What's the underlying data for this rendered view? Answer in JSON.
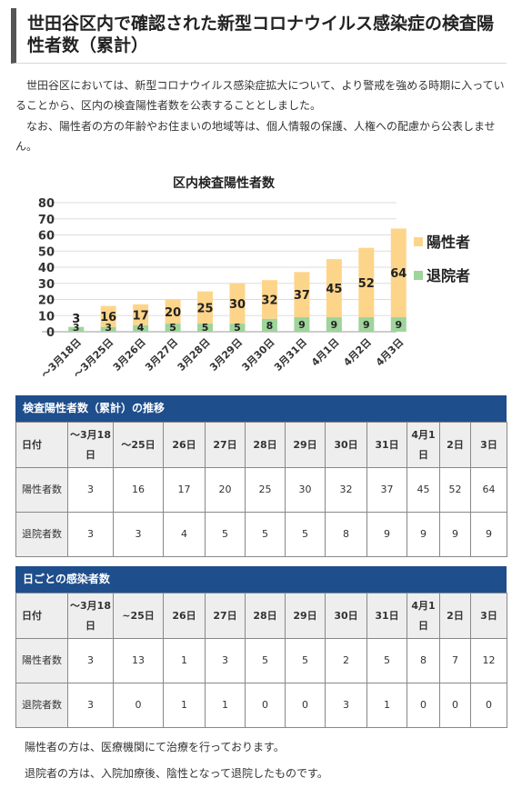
{
  "page": {
    "title": "世田谷区内で確認された新型コロナウイルス感染症の検査陽性者数（累計）",
    "para1": "世田谷区においては、新型コロナウイルス感染症拡大について、より警戒を強める時期に入っていることから、区内の検査陽性者数を公表することとしました。",
    "para2": "なお、陽性者の方の年齢やお住まいの地域等は、個人情報の保護、人権への配慮から公表しません。"
  },
  "chart_data": {
    "type": "bar",
    "title": "区内検査陽性者数",
    "categories": [
      "～3月18日",
      "～3月25日",
      "3月26日",
      "3月27日",
      "3月28日",
      "3月29日",
      "3月30日",
      "3月31日",
      "4月1日",
      "4月2日",
      "4月3日"
    ],
    "series": [
      {
        "name": "陽性者",
        "values": [
          3,
          16,
          17,
          20,
          25,
          30,
          32,
          37,
          45,
          52,
          64
        ]
      },
      {
        "name": "退院者",
        "values": [
          3,
          3,
          4,
          5,
          5,
          5,
          8,
          9,
          9,
          9,
          9
        ]
      }
    ],
    "ylim": [
      0,
      80
    ],
    "yticks": [
      0,
      10,
      20,
      30,
      40,
      50,
      60,
      70,
      80
    ],
    "grid": true,
    "legend": "right",
    "colors": {
      "positive": "#fdd58a",
      "discharged": "#9fd49a"
    }
  },
  "table1": {
    "heading": "検査陽性者数（累計）の推移",
    "columns": [
      "日付",
      "～3月18日",
      "～25日",
      "26日",
      "27日",
      "28日",
      "29日",
      "30日",
      "31日",
      "4月1日",
      "2日",
      "3日"
    ],
    "rows": [
      {
        "label": "陽性者数",
        "values": [
          "3",
          "16",
          "17",
          "20",
          "25",
          "30",
          "32",
          "37",
          "45",
          "52",
          "64"
        ]
      },
      {
        "label": "退院者数",
        "values": [
          "3",
          "3",
          "4",
          "5",
          "5",
          "5",
          "8",
          "9",
          "9",
          "9",
          "9"
        ]
      }
    ]
  },
  "table2": {
    "heading": "日ごとの感染者数",
    "columns": [
      "日付",
      "～3月18日",
      "~25日",
      "26日",
      "27日",
      "28日",
      "29日",
      "30日",
      "31日",
      "4月1日",
      "2日",
      "3日"
    ],
    "rows": [
      {
        "label": "陽性者数",
        "values": [
          "3",
          "13",
          "1",
          "3",
          "5",
          "5",
          "2",
          "5",
          "8",
          "7",
          "12"
        ]
      },
      {
        "label": "退院者数",
        "values": [
          "3",
          "0",
          "1",
          "1",
          "0",
          "0",
          "3",
          "1",
          "0",
          "0",
          "0"
        ]
      }
    ]
  },
  "notes": {
    "note1": "陽性者の方は、医療機関にて治療を行っております。",
    "note2": "退院者の方は、入院加療後、陰性となって退院したものです。"
  }
}
